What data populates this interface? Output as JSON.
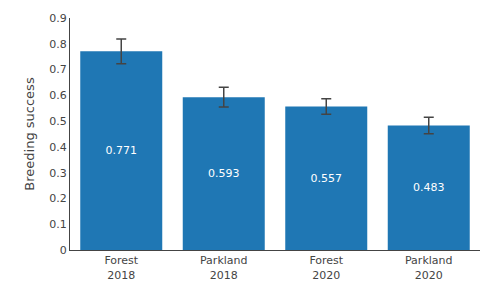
{
  "chart_data": {
    "type": "bar",
    "categories": [
      "Forest\n2018",
      "Parkland\n2018",
      "Forest\n2020",
      "Parkland\n2020"
    ],
    "values": [
      0.771,
      0.593,
      0.557,
      0.483
    ],
    "errors": [
      0.048,
      0.038,
      0.03,
      0.032
    ],
    "ylabel": "Breeding success",
    "ylim": [
      0,
      0.9
    ],
    "yticks": [
      0,
      0.1,
      0.2,
      0.3,
      0.4,
      0.5,
      0.6,
      0.7,
      0.8,
      0.9
    ],
    "grid": false,
    "data_labels": true
  }
}
